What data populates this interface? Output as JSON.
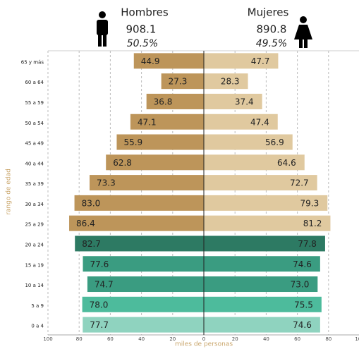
{
  "chart_data": {
    "type": "pyramid",
    "y_label": "rango de edad",
    "x_label": "miles de personas",
    "categories": [
      "65 y más",
      "60 a 64",
      "55 a 59",
      "50 a 54",
      "45 a 49",
      "40 a 44",
      "35 a 39",
      "30 a 34",
      "25 a 29",
      "20 a 24",
      "15 a 19",
      "10 a 14",
      "5 a 9",
      "0 a 4"
    ],
    "series": [
      {
        "name": "Hombres",
        "side": "left",
        "total": "908.1",
        "share": "50.5%",
        "values": [
          44.9,
          27.3,
          36.8,
          47.1,
          55.9,
          62.8,
          73.3,
          83.0,
          86.4,
          82.7,
          77.6,
          74.7,
          78.0,
          77.7
        ],
        "value_labels": [
          "44.9",
          "27.3",
          "36.8",
          "47.1",
          "55.9",
          "62.8",
          "73.3",
          "83.0",
          "86.4",
          "82.7",
          "77.6",
          "74.7",
          "78.0",
          "77.7"
        ],
        "colors": [
          "#bd955a",
          "#bd955a",
          "#bd955a",
          "#bd955a",
          "#bd955a",
          "#bd955a",
          "#bd955a",
          "#bd955a",
          "#bd955a",
          "#2d7a63",
          "#3a9c81",
          "#3a9c81",
          "#4dbb9c",
          "#8fd3bf"
        ]
      },
      {
        "name": "Mujeres",
        "side": "right",
        "total": "890.8",
        "share": "49.5%",
        "values": [
          47.7,
          28.3,
          37.4,
          47.4,
          56.9,
          64.6,
          72.7,
          79.3,
          81.2,
          77.8,
          74.6,
          73.0,
          75.5,
          74.6
        ],
        "value_labels": [
          "47.7",
          "28.3",
          "37.4",
          "47.4",
          "56.9",
          "64.6",
          "72.7",
          "79.3",
          "81.2",
          "77.8",
          "74.6",
          "73.0",
          "75.5",
          "74.6"
        ],
        "colors": [
          "#e0c99f",
          "#e0c99f",
          "#e0c99f",
          "#e0c99f",
          "#e0c99f",
          "#e0c99f",
          "#e0c99f",
          "#e0c99f",
          "#e0c99f",
          "#2d7a63",
          "#3a9c81",
          "#3a9c81",
          "#4dbb9c",
          "#8fd3bf"
        ]
      }
    ],
    "xlim": [
      -100,
      100
    ],
    "xticks": [
      {
        "value": -100,
        "label": "100"
      },
      {
        "value": -80,
        "label": "80"
      },
      {
        "value": -60,
        "label": "60"
      },
      {
        "value": -40,
        "label": "40"
      },
      {
        "value": -20,
        "label": "20"
      },
      0,
      20,
      40,
      60,
      80,
      100
    ],
    "grid": true
  }
}
